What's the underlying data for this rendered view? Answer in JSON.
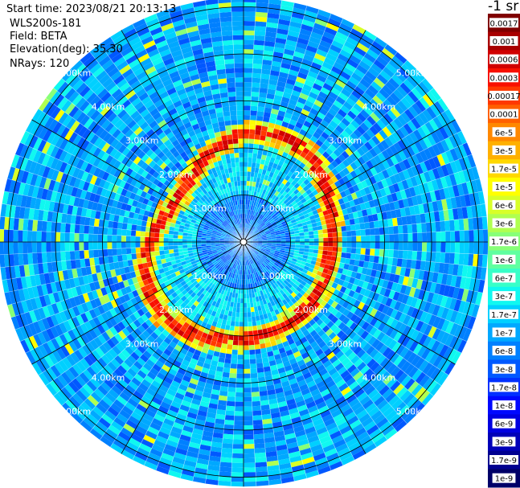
{
  "header": {
    "start_time": "Start time: 2023/08/21 20:13:13",
    "instrument": "WLS200s-181",
    "field": "Field: BETA",
    "elevation": "Elevation(deg): 35.30",
    "nrays": "NRays: 120"
  },
  "colorbar": {
    "units": "-1 sr",
    "labels": [
      "0.0017",
      "0.001",
      "0.0006",
      "0.0003",
      "0.00017",
      "0.0001",
      "6e-5",
      "3e-5",
      "1.7e-5",
      "1e-5",
      "6e-6",
      "3e-6",
      "1.7e-6",
      "1e-6",
      "6e-7",
      "3e-7",
      "1.7e-7",
      "1e-7",
      "6e-8",
      "3e-8",
      "1.7e-8",
      "1e-8",
      "6e-9",
      "3e-9",
      "1.7e-9",
      "1e-9"
    ],
    "colors": [
      "#800000",
      "#a80000",
      "#d00000",
      "#f81000",
      "#ff3800",
      "#ff6000",
      "#ff8800",
      "#ffb000",
      "#ffd800",
      "#ffff00",
      "#d8ff28",
      "#b0ff50",
      "#88ff78",
      "#60ffa0",
      "#38ffc8",
      "#10f8f0",
      "#00d0ff",
      "#00a8ff",
      "#0080ff",
      "#0058ff",
      "#0030ff",
      "#0008ff",
      "#0000e0",
      "#0000b8",
      "#000090",
      "#000068"
    ]
  },
  "chart_data": {
    "type": "ppi",
    "field": "BETA",
    "elevation_deg": 35.3,
    "nrays": 120,
    "range_rings_km": [
      1.0,
      2.0,
      3.0,
      4.0,
      5.0
    ],
    "ring_labels": [
      "1.00km",
      "2.00km",
      "3.00km",
      "4.00km",
      "5.00km"
    ],
    "max_range_km": 5.2,
    "colorscale": "log",
    "colorscale_range": [
      1e-09,
      0.0017
    ]
  }
}
